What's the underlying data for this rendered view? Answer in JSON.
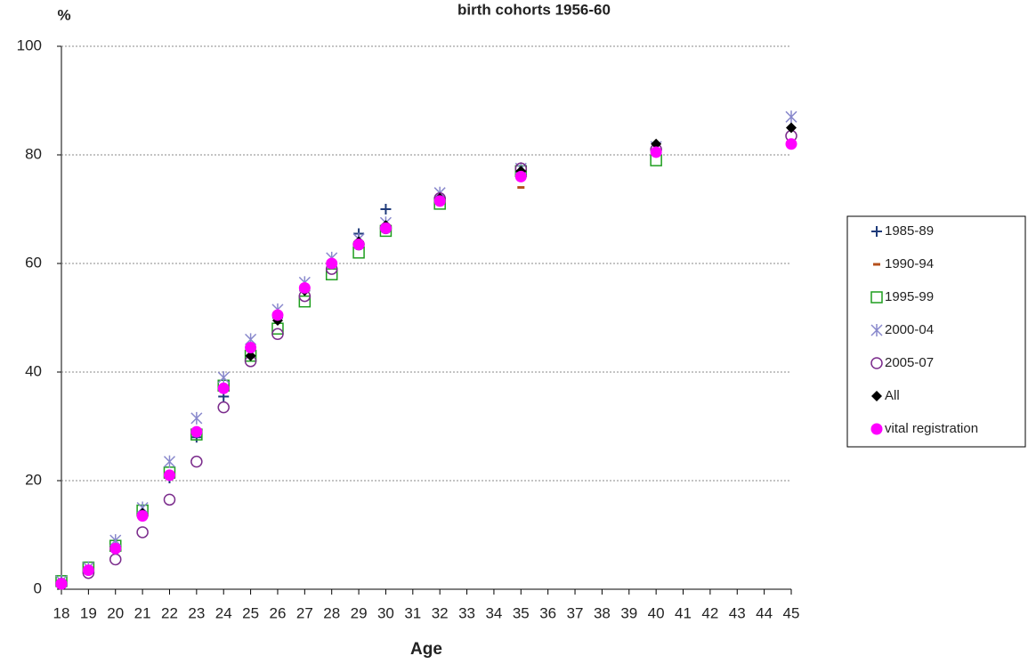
{
  "chart_data": {
    "type": "scatter",
    "title": "birth cohorts 1956-60",
    "y_label": "%",
    "x_label": "Age",
    "x": [
      18,
      19,
      20,
      21,
      22,
      23,
      24,
      25,
      26,
      27,
      28,
      29,
      30,
      32,
      35,
      40,
      45
    ],
    "xlim": [
      18,
      45
    ],
    "xticks": [
      18,
      19,
      20,
      21,
      22,
      23,
      24,
      25,
      26,
      27,
      28,
      29,
      30,
      31,
      32,
      33,
      34,
      35,
      36,
      37,
      38,
      39,
      40,
      41,
      42,
      43,
      44,
      45
    ],
    "ylim": [
      0,
      100
    ],
    "yticks": [
      0,
      20,
      40,
      60,
      80,
      100
    ],
    "grid": true,
    "legend": "right",
    "series": [
      {
        "name": "1985-89",
        "color": "#1f3b7a",
        "marker": "plus",
        "values": [
          1.5,
          3.5,
          8,
          14,
          20.5,
          28,
          35.5,
          43,
          50,
          55,
          60,
          65.5,
          70,
          null,
          null,
          null,
          null
        ]
      },
      {
        "name": "1990-94",
        "color": "#b5501c",
        "marker": "dash",
        "values": [
          null,
          null,
          null,
          null,
          null,
          null,
          null,
          null,
          null,
          null,
          null,
          null,
          null,
          null,
          74,
          null,
          null
        ]
      },
      {
        "name": "1995-99",
        "color": "#1e9e1e",
        "marker": "square",
        "values": [
          1.5,
          4,
          8,
          14.5,
          21.5,
          28.5,
          37.5,
          43,
          48,
          53,
          58,
          62,
          66,
          71,
          77,
          79,
          null
        ]
      },
      {
        "name": "2000-04",
        "color": "#8888cc",
        "marker": "asterisk",
        "values": [
          1.5,
          4,
          9,
          15,
          23.5,
          31.5,
          39,
          46,
          51.5,
          56.5,
          61,
          64.5,
          67.5,
          73,
          77.5,
          81.5,
          87
        ]
      },
      {
        "name": "2005-07",
        "color": "#7b2c8c",
        "marker": "circle",
        "values": [
          1,
          3,
          5.5,
          10.5,
          16.5,
          23.5,
          33.5,
          42,
          47,
          54,
          59,
          63.5,
          66.5,
          72,
          77.5,
          81,
          83.5
        ]
      },
      {
        "name": "All",
        "color": "#000000",
        "marker": "diamond",
        "values": [
          1,
          3.5,
          7.5,
          14,
          21,
          29,
          37,
          43,
          49.5,
          55,
          60,
          64,
          67,
          72,
          77,
          82,
          85
        ]
      },
      {
        "name": "vital registration",
        "color": "#ff00ff",
        "marker": "dot",
        "values": [
          1,
          3.5,
          7.5,
          13.5,
          21,
          29,
          37,
          44.5,
          50.5,
          55.5,
          60,
          63.5,
          66.5,
          71.5,
          76,
          80.5,
          82
        ]
      }
    ]
  }
}
